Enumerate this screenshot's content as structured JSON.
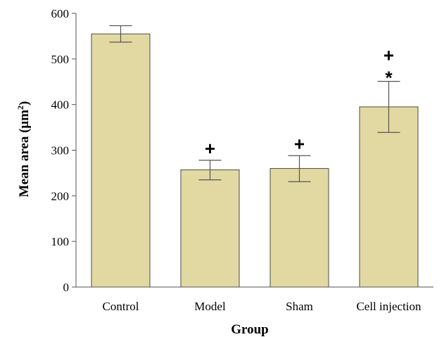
{
  "chart_data": {
    "type": "bar",
    "title": "",
    "xlabel": "Group",
    "ylabel_text": "Mean area (μm",
    "ylabel_sup": "2",
    "ylabel_close": ")",
    "categories": [
      "Control",
      "Model",
      "Sham",
      "Cell injection"
    ],
    "values": [
      555,
      257,
      260,
      395
    ],
    "errors": [
      [
        537,
        573
      ],
      [
        235,
        278
      ],
      [
        231,
        288
      ],
      [
        339,
        451
      ]
    ],
    "annotations": [
      {
        "category": "Model",
        "lines": [
          "+"
        ]
      },
      {
        "category": "Sham",
        "lines": [
          "+"
        ]
      },
      {
        "category": "Cell injection",
        "lines": [
          "+",
          "*"
        ]
      }
    ],
    "ylim": [
      0,
      600
    ],
    "yticks": [
      "0",
      "100",
      "200",
      "300",
      "400",
      "500",
      "600"
    ],
    "grid": false,
    "legend": "none",
    "bar_color": "#e2d9a2",
    "bar_edge_color": "#4a4a4a",
    "error_bar_color": "#555555"
  }
}
